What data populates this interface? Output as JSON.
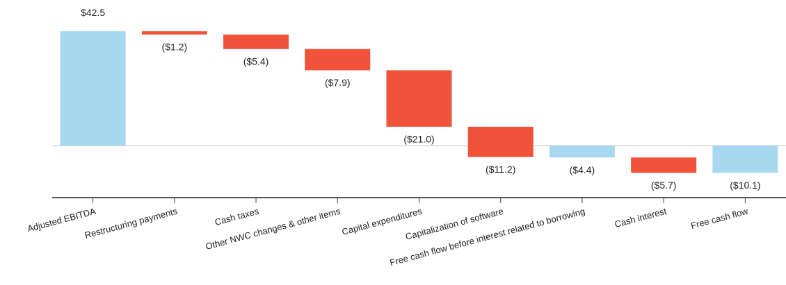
{
  "chart_data": {
    "type": "waterfall",
    "categories": [
      "Adjusted EBITDA",
      "Restructuring payments",
      "Cash taxes",
      "Other NWC changes & other items",
      "Capital expenditures",
      "Capitalization of software",
      "Free cash flow before interest related to borrowing",
      "Cash interest",
      "Free cash flow"
    ],
    "values": [
      42.5,
      -1.2,
      -5.4,
      -7.9,
      -21.0,
      -11.2,
      -4.4,
      -5.7,
      -10.1
    ],
    "value_labels": [
      "$42.5",
      "($1.2)",
      "($5.4)",
      "($7.9)",
      "($21.0)",
      "($11.2)",
      "($4.4)",
      "($5.7)",
      "($10.1)"
    ],
    "is_total": [
      true,
      false,
      false,
      false,
      false,
      false,
      true,
      false,
      true
    ],
    "total_color": "#a8d8f0",
    "decrease_color": "#f0533a"
  }
}
